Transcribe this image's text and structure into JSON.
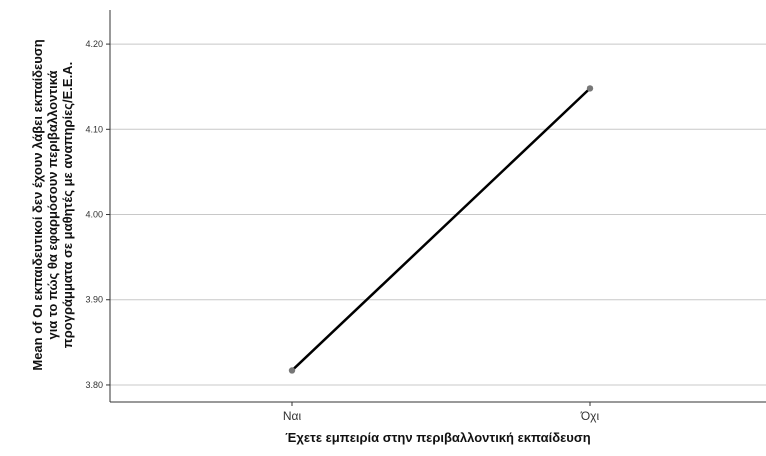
{
  "chart_data": {
    "type": "line",
    "categories": [
      "Ναι",
      "Όχι"
    ],
    "series": [
      {
        "values": [
          3.817,
          4.148
        ]
      }
    ],
    "xlabel": "Έχετε εμπειρία στην περιβαλλοντική εκπαίδευση",
    "ylabel_lines": [
      "Mean of Οι εκπαιδευτικοί δεν έχουν λάβει εκπαίδευση",
      "για το πώς θα εφαρμόσουν περιβαλλοντικά",
      "προγράμματα σε μαθητές με αναπηρίες/Ε.Ε.Α."
    ],
    "ylim": [
      3.78,
      4.24
    ],
    "yticks": [
      "3.80",
      "3.90",
      "4.00",
      "4.10",
      "4.20"
    ],
    "grid": true,
    "colors": {
      "line": "#000000",
      "marker": "#777777",
      "grid": "#c8c8c8",
      "axis": "#333333"
    }
  }
}
